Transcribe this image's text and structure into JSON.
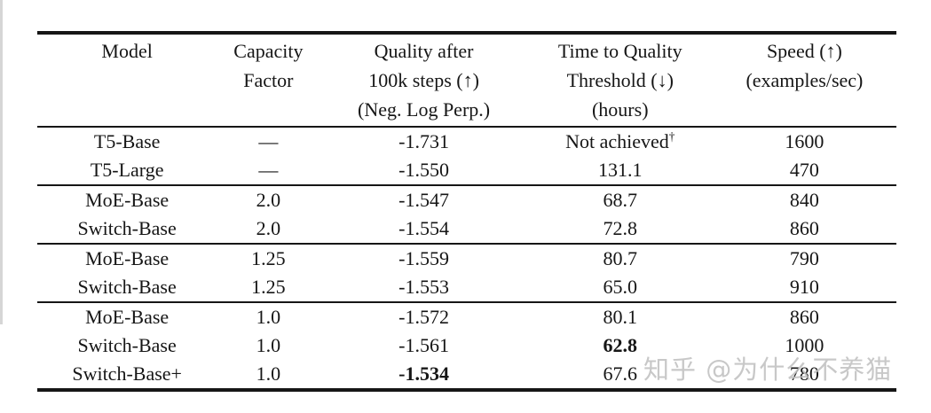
{
  "colors": {
    "background": "#ffffff",
    "text": "#161616",
    "rule": "#161616",
    "watermark": "#bfbfbf"
  },
  "watermark": {
    "text": "知乎 @为什么不养猫"
  },
  "table": {
    "columns": [
      {
        "id": "model",
        "lines": [
          "Model"
        ]
      },
      {
        "id": "capacity-factor",
        "lines": [
          "Capacity",
          "Factor"
        ]
      },
      {
        "id": "quality",
        "lines": [
          "Quality after",
          "100k steps (↑)",
          "(Neg. Log Perp.)"
        ]
      },
      {
        "id": "time-to-quality",
        "lines": [
          "Time to Quality",
          "Threshold (↓)",
          "(hours)"
        ]
      },
      {
        "id": "speed",
        "lines": [
          "Speed (↑)",
          "(examples/sec)"
        ]
      }
    ],
    "groups": [
      {
        "rows": [
          {
            "cells": [
              {
                "text": "T5-Base"
              },
              {
                "text": "—"
              },
              {
                "text": "-1.731"
              },
              {
                "text": "Not achieved",
                "sup": "†"
              },
              {
                "text": "1600"
              }
            ]
          },
          {
            "cells": [
              {
                "text": "T5-Large"
              },
              {
                "text": "—"
              },
              {
                "text": "-1.550"
              },
              {
                "text": "131.1"
              },
              {
                "text": "470"
              }
            ]
          }
        ]
      },
      {
        "rows": [
          {
            "cells": [
              {
                "text": "MoE-Base"
              },
              {
                "text": "2.0"
              },
              {
                "text": "-1.547"
              },
              {
                "text": "68.7"
              },
              {
                "text": "840"
              }
            ]
          },
          {
            "cells": [
              {
                "text": "Switch-Base"
              },
              {
                "text": "2.0"
              },
              {
                "text": "-1.554"
              },
              {
                "text": "72.8"
              },
              {
                "text": "860"
              }
            ]
          }
        ]
      },
      {
        "rows": [
          {
            "cells": [
              {
                "text": "MoE-Base"
              },
              {
                "text": "1.25"
              },
              {
                "text": "-1.559"
              },
              {
                "text": "80.7"
              },
              {
                "text": "790"
              }
            ]
          },
          {
            "cells": [
              {
                "text": "Switch-Base"
              },
              {
                "text": "1.25"
              },
              {
                "text": "-1.553"
              },
              {
                "text": "65.0"
              },
              {
                "text": "910"
              }
            ]
          }
        ]
      },
      {
        "rows": [
          {
            "cells": [
              {
                "text": "MoE-Base"
              },
              {
                "text": "1.0"
              },
              {
                "text": "-1.572"
              },
              {
                "text": "80.1"
              },
              {
                "text": "860"
              }
            ]
          },
          {
            "cells": [
              {
                "text": "Switch-Base"
              },
              {
                "text": "1.0"
              },
              {
                "text": "-1.561"
              },
              {
                "text": "62.8",
                "bold": true
              },
              {
                "text": "1000"
              }
            ]
          },
          {
            "cells": [
              {
                "text": "Switch-Base+"
              },
              {
                "text": "1.0"
              },
              {
                "text": "-1.534",
                "bold": true
              },
              {
                "text": "67.6"
              },
              {
                "text": "780"
              }
            ]
          }
        ]
      }
    ]
  }
}
